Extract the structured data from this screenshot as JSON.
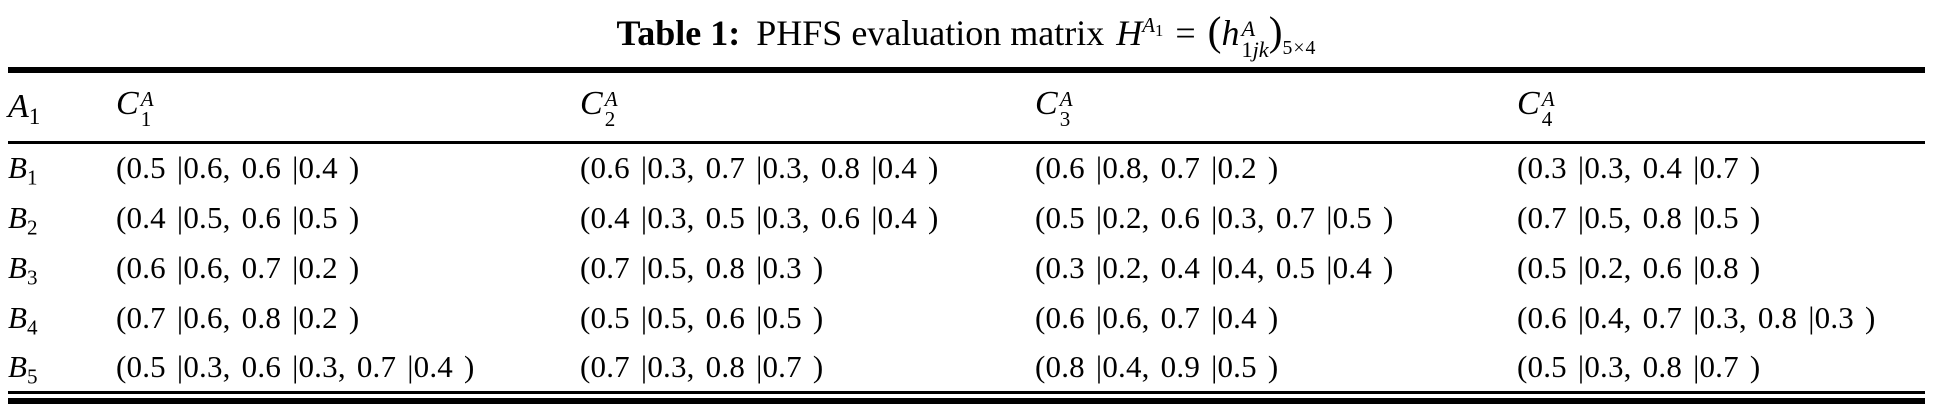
{
  "caption": {
    "label": "Table 1:",
    "text": "PHFS evaluation matrix",
    "formula": {
      "lhs_base": "H",
      "lhs_sup_base": "A",
      "lhs_sup_sub": "1",
      "relation": "=",
      "rhs_open": "(",
      "rhs_base": "h",
      "rhs_sup": "A",
      "rhs_sub_num": "1",
      "rhs_sub_it": "jk",
      "rhs_close": ")",
      "rhs_dims": "5×4"
    }
  },
  "table": {
    "corner": {
      "base": "A",
      "sub": "1"
    },
    "columns": [
      {
        "base": "C",
        "sup": "A",
        "sub": "1"
      },
      {
        "base": "C",
        "sup": "A",
        "sub": "2"
      },
      {
        "base": "C",
        "sup": "A",
        "sub": "3"
      },
      {
        "base": "C",
        "sup": "A",
        "sub": "4"
      }
    ],
    "rows": [
      {
        "label_base": "B",
        "label_sub": "1",
        "cells": [
          "(0.5 |0.6, 0.6 |0.4 )",
          "(0.6 |0.3, 0.7 |0.3, 0.8 |0.4 )",
          "(0.6 |0.8, 0.7 |0.2 )",
          "(0.3 |0.3, 0.4 |0.7 )"
        ]
      },
      {
        "label_base": "B",
        "label_sub": "2",
        "cells": [
          "(0.4 |0.5, 0.6 |0.5 )",
          "(0.4 |0.3, 0.5 |0.3, 0.6 |0.4 )",
          "(0.5 |0.2, 0.6 |0.3, 0.7 |0.5 )",
          "(0.7 |0.5, 0.8 |0.5 )"
        ]
      },
      {
        "label_base": "B",
        "label_sub": "3",
        "cells": [
          "(0.6 |0.6, 0.7 |0.2 )",
          "(0.7 |0.5, 0.8 |0.3 )",
          "(0.3 |0.2, 0.4 |0.4, 0.5 |0.4 )",
          "(0.5 |0.2, 0.6 |0.8 )"
        ]
      },
      {
        "label_base": "B",
        "label_sub": "4",
        "cells": [
          "(0.7 |0.6, 0.8 |0.2 )",
          "(0.5 |0.5, 0.6 |0.5 )",
          "(0.6 |0.6, 0.7 |0.4 )",
          "(0.6 |0.4, 0.7 |0.3, 0.8 |0.3 )"
        ]
      },
      {
        "label_base": "B",
        "label_sub": "5",
        "cells": [
          "(0.5 |0.3, 0.6 |0.3, 0.7 |0.4 )",
          "(0.7 |0.3, 0.8 |0.7 )",
          "(0.8 |0.4, 0.9 |0.5 )",
          "(0.5 |0.3, 0.8 |0.7 )"
        ]
      }
    ]
  },
  "colors": {
    "text": "#000000",
    "background": "#ffffff",
    "rule": "#000000"
  }
}
